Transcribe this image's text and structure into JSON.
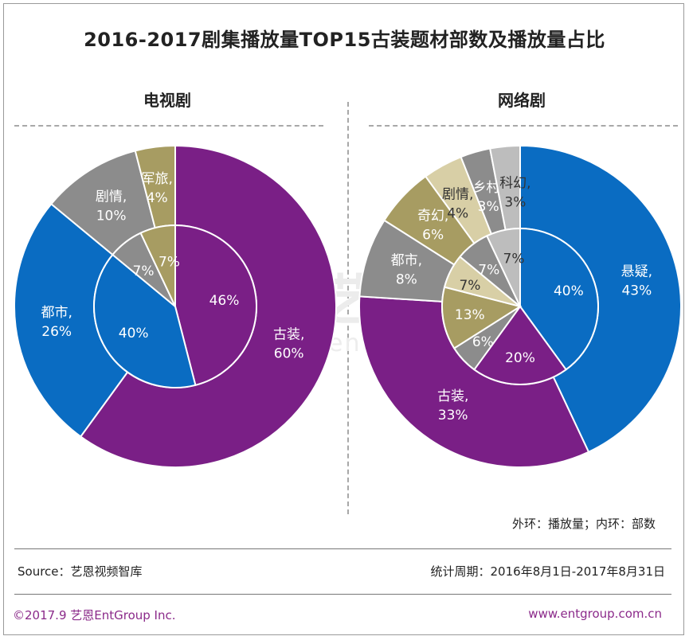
{
  "title": "2016-2017剧集播放量TOP15古装题材部数及播放量占比",
  "legend_note": "外环：播放量；内环：部数",
  "source": "Source：艺恩视频智库",
  "period": "统计周期：2016年8月1日-2017年8月31日",
  "copyright": "©2017.9  艺恩EntGroup Inc.",
  "website": "www.entgroup.com.cn",
  "watermark": {
    "main": "艺恩",
    "sub": "entgroup"
  },
  "colors": {
    "purple": "#7a1f86",
    "blue": "#0a6cc2",
    "gray": "#8c8c8c",
    "olive": "#a79c62",
    "beige": "#d8cfa6",
    "lightgray": "#bdbdbd"
  },
  "chart_data": [
    {
      "type": "pie",
      "subtitle": "电视剧",
      "outer_ring": {
        "name": "播放量",
        "categories": [
          "古装",
          "都市",
          "剧情",
          "军旅"
        ],
        "values": [
          60,
          26,
          10,
          4
        ],
        "labels": [
          "古装,\n60%",
          "都市,\n26%",
          "剧情,\n10%",
          "军旅,\n4%"
        ],
        "colors": [
          "purple",
          "blue",
          "gray",
          "olive"
        ]
      },
      "inner_ring": {
        "name": "部数",
        "categories": [
          "古装",
          "都市",
          "剧情",
          "军旅"
        ],
        "values": [
          46,
          40,
          7,
          7
        ],
        "labels": [
          "46%",
          "40%",
          "7%",
          "7%"
        ],
        "colors": [
          "purple",
          "blue",
          "gray",
          "olive"
        ]
      }
    },
    {
      "type": "pie",
      "subtitle": "网络剧",
      "outer_ring": {
        "name": "播放量",
        "categories": [
          "悬疑",
          "古装",
          "都市",
          "奇幻",
          "剧情",
          "乡村",
          "科幻"
        ],
        "values": [
          43,
          33,
          8,
          6,
          4,
          3,
          3
        ],
        "labels": [
          "悬疑,\n43%",
          "古装,\n33%",
          "都市,\n8%",
          "奇幻,\n6%",
          "剧情,\n4%",
          "乡村,\n3%",
          "科幻,\n3%"
        ],
        "colors": [
          "blue",
          "purple",
          "gray",
          "olive",
          "beige",
          "gray",
          "lightgray"
        ]
      },
      "inner_ring": {
        "name": "部数",
        "categories": [
          "悬疑",
          "古装",
          "都市",
          "奇幻",
          "剧情",
          "乡村",
          "科幻"
        ],
        "values": [
          40,
          20,
          6,
          13,
          7,
          7,
          7
        ],
        "labels": [
          "40%",
          "20%",
          "6%",
          "13%",
          "7%",
          "7%",
          "7%"
        ],
        "colors": [
          "blue",
          "purple",
          "gray",
          "olive",
          "beige",
          "gray",
          "lightgray"
        ]
      }
    }
  ]
}
